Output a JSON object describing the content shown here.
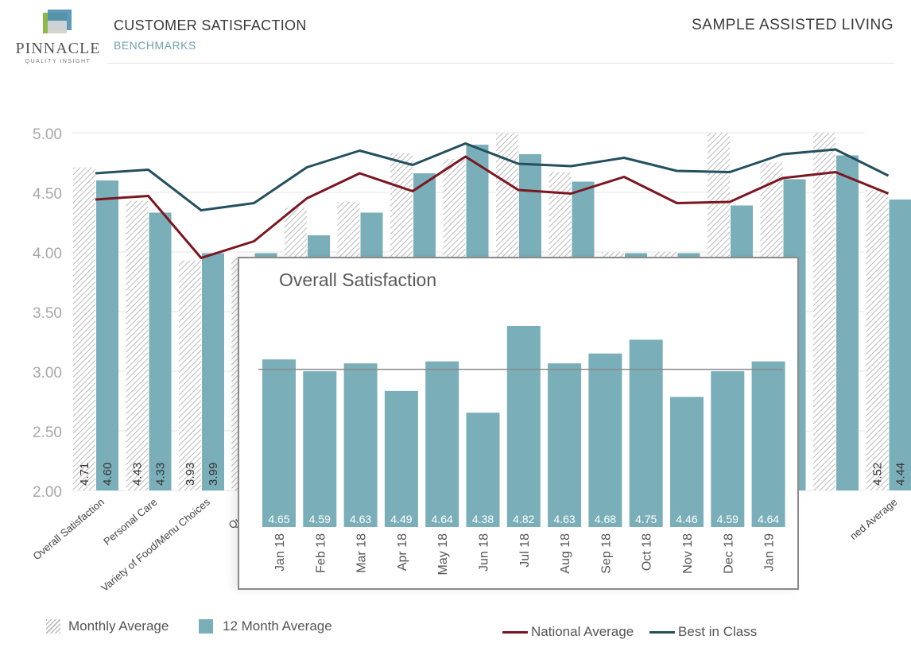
{
  "header": {
    "logo_word": "PINNACLE",
    "logo_tagline": "QUALITY INSIGHT",
    "title": "CUSTOMER SATISFACTION",
    "subtitle": "BENCHMARKS",
    "facility": "SAMPLE ASSISTED LIVING"
  },
  "colors": {
    "teal": "#7aafb9",
    "hatch": "#b9b9b9",
    "national": "#7b1620",
    "best": "#244f5e",
    "grid": "#e6e6e6"
  },
  "chart_data": [
    {
      "type": "bar",
      "title": "",
      "ylim": [
        2.0,
        5.0
      ],
      "yticks": [
        "2.00",
        "2.50",
        "3.00",
        "3.50",
        "4.00",
        "4.50",
        "5.00"
      ],
      "categories": [
        "Overall Satisfaction",
        "Personal Care",
        "Variety of Food/Menu Choices",
        "Quality of Food",
        "",
        "",
        "",
        "",
        "",
        "",
        "",
        "",
        "",
        "",
        "",
        "Combined Average"
      ],
      "visible_category_labels": [
        "Overall Satisfaction",
        "Personal Care",
        "Variety of Food/Menu Choices",
        "Quality o",
        "ned Average"
      ],
      "series": [
        {
          "name": "Monthly Average",
          "values": [
            4.71,
            4.43,
            3.93,
            3.95,
            4.37,
            4.42,
            4.83,
            4.78,
            5.0,
            4.67,
            4.0,
            4.0,
            5.0,
            4.75,
            5.0,
            4.52
          ]
        },
        {
          "name": "12 Month Average",
          "values": [
            4.6,
            4.33,
            3.99,
            3.99,
            4.14,
            4.33,
            4.66,
            4.9,
            4.82,
            4.59,
            3.99,
            3.99,
            4.39,
            4.61,
            4.81,
            4.44
          ]
        },
        {
          "name": "National Average",
          "values": [
            4.44,
            4.47,
            3.95,
            4.09,
            4.45,
            4.66,
            4.51,
            4.8,
            4.52,
            4.49,
            4.63,
            4.41,
            4.42,
            4.62,
            4.67,
            4.49
          ]
        },
        {
          "name": "Best in Class",
          "values": [
            4.66,
            4.69,
            4.35,
            4.41,
            4.71,
            4.85,
            4.73,
            4.91,
            4.74,
            4.72,
            4.79,
            4.68,
            4.67,
            4.82,
            4.86,
            4.64
          ]
        }
      ],
      "data_labels": [
        {
          "index": 0,
          "monthly": "4.71",
          "twelve": "4.60"
        },
        {
          "index": 1,
          "monthly": "4.43",
          "twelve": "4.33"
        },
        {
          "index": 2,
          "monthly": "3.93",
          "twelve": "3.99"
        },
        {
          "index": 15,
          "monthly": "4.52",
          "twelve": "4.44"
        }
      ],
      "legend": [
        {
          "name": "Monthly Average",
          "style": "hatch"
        },
        {
          "name": "12 Month Average",
          "style": "teal"
        },
        {
          "name": "National Average",
          "style": "line-national"
        },
        {
          "name": "Best in Class",
          "style": "line-best"
        }
      ]
    },
    {
      "type": "bar",
      "title": "Overall Satisfaction",
      "categories": [
        "Jan 18",
        "Feb 18",
        "Mar 18",
        "Apr 18",
        "May 18",
        "Jun 18",
        "Jul 18",
        "Aug 18",
        "Sep 18",
        "Oct 18",
        "Nov 18",
        "Dec 18",
        "Jan 19"
      ],
      "values": [
        4.65,
        4.59,
        4.63,
        4.49,
        4.64,
        4.38,
        4.82,
        4.63,
        4.68,
        4.75,
        4.46,
        4.59,
        4.64
      ],
      "value_labels": [
        "4.65",
        "4.59",
        "4.63",
        "4.49",
        "4.64",
        "4.38",
        "4.82",
        "4.63",
        "4.68",
        "4.75",
        "4.46",
        "4.59",
        "4.64"
      ],
      "reference_line": 4.6,
      "ylim": [
        0,
        5.0
      ]
    }
  ]
}
